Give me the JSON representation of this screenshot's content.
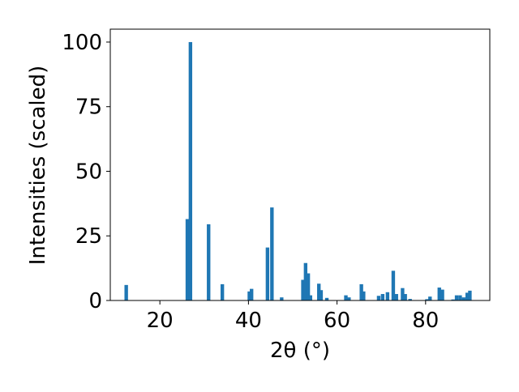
{
  "chart_data": {
    "type": "bar",
    "xlabel": "2θ (°)",
    "ylabel": "Intensities (scaled)",
    "color": "#1f77b4",
    "x": [
      12.4,
      26.2,
      26.9,
      31.0,
      34.1,
      40.2,
      40.7,
      44.3,
      45.3,
      47.5,
      52.3,
      52.9,
      53.5,
      54.0,
      55.9,
      56.4,
      57.7,
      62.0,
      62.7,
      65.5,
      66.0,
      69.4,
      70.3,
      71.4,
      72.7,
      73.4,
      74.8,
      75.4,
      76.5,
      80.3,
      81.0,
      83.1,
      83.8,
      86.2,
      87.0,
      87.8,
      88.6,
      89.4,
      90.0
    ],
    "values": [
      6,
      31.5,
      100,
      29.5,
      6.3,
      3.5,
      4.5,
      20.5,
      36,
      1.2,
      8,
      14.5,
      10.5,
      2,
      6.5,
      4,
      1,
      2,
      1.2,
      6.3,
      3.5,
      1.8,
      2.5,
      3.2,
      11.5,
      2.5,
      4.8,
      2.5,
      0.6,
      0.5,
      1.5,
      5,
      4.2,
      0.4,
      2,
      2,
      1.2,
      3,
      3.8
    ],
    "xlim": [
      8.8,
      94.5
    ],
    "xticks": [
      20,
      40,
      60,
      80
    ],
    "ylim": [
      0,
      105
    ],
    "yticks": [
      0,
      25,
      50,
      75,
      100
    ]
  }
}
